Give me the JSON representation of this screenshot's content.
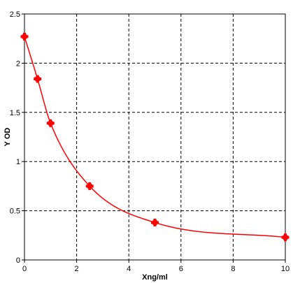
{
  "chart_data": {
    "type": "scatter",
    "title": "",
    "xlabel": "Xng/ml",
    "ylabel": "Y OD",
    "xlim": [
      0,
      10
    ],
    "ylim": [
      0,
      2.5
    ],
    "x_ticks": [
      0,
      2,
      4,
      6,
      8,
      10
    ],
    "y_ticks": [
      0,
      0.5,
      1,
      1.5,
      2,
      2.5
    ],
    "x_tick_labels": [
      "0",
      "2",
      "4",
      "6",
      "8",
      "10"
    ],
    "y_tick_labels": [
      "0",
      "0.5",
      "1",
      "1.5",
      "2",
      "2.5"
    ],
    "grid": true,
    "grid_style": "dashed",
    "series": [
      {
        "x": [
          0,
          0.5,
          1,
          2.5,
          5,
          10
        ],
        "y": [
          2.27,
          1.84,
          1.39,
          0.75,
          0.38,
          0.23
        ],
        "fit": "smooth",
        "color": "#ff0000"
      }
    ]
  }
}
